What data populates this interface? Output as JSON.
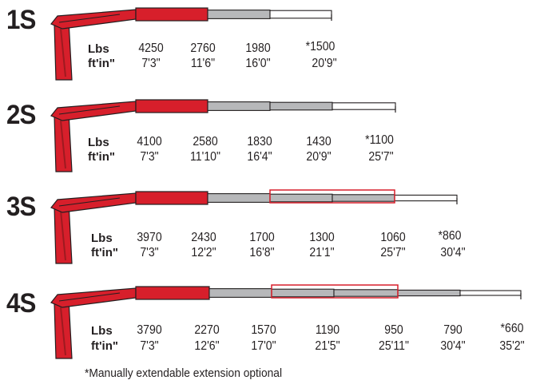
{
  "colors": {
    "boom_red": "#d71f2b",
    "boom_dark_red": "#9e1a20",
    "boom_gray": "#b7b8ba",
    "outline": "#231f20",
    "text": "#231f20"
  },
  "labels": {
    "weight_unit": "Lbs",
    "length_unit": "ft'in\""
  },
  "configurations": [
    {
      "model": "1S",
      "extensions": 1,
      "loads": [
        "4250",
        "2760",
        "1980",
        "*1500"
      ],
      "reaches": [
        "7'3\"",
        "11'6\"",
        "16'0\"",
        "20'9\""
      ]
    },
    {
      "model": "2S",
      "extensions": 2,
      "loads": [
        "4100",
        "2580",
        "1830",
        "1430",
        "*1100"
      ],
      "reaches": [
        "7'3\"",
        "11'10\"",
        "16'4\"",
        "20'9\"",
        "25'7\""
      ]
    },
    {
      "model": "3S",
      "extensions": 3,
      "loads": [
        "3970",
        "2430",
        "1700",
        "1300",
        "1060",
        "*860"
      ],
      "reaches": [
        "7'3\"",
        "12'2\"",
        "16'8\"",
        "21'1\"",
        "25'7\"",
        "30'4\""
      ]
    },
    {
      "model": "4S",
      "extensions": 4,
      "loads": [
        "3790",
        "2270",
        "1570",
        "1190",
        "950",
        "790",
        "*660"
      ],
      "reaches": [
        "7'3\"",
        "12'6\"",
        "17'0\"",
        "21'5\"",
        "25'11\"",
        "30'4\"",
        "35'2\""
      ]
    }
  ],
  "footnote": "*Manually extendable extension optional"
}
